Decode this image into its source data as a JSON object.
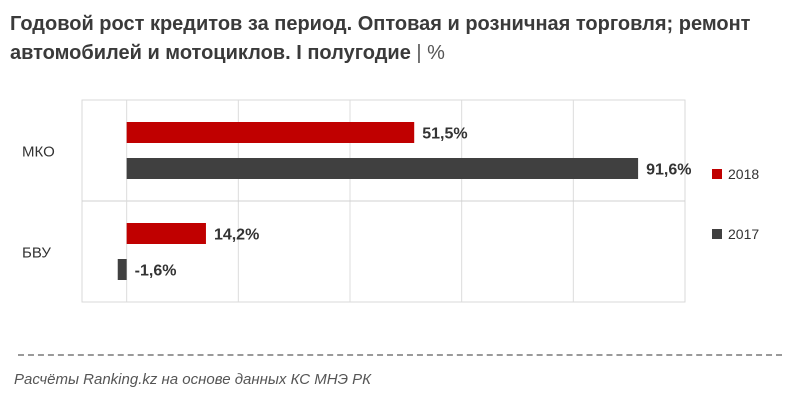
{
  "title": "Годовой рост кредитов за период. Оптовая и розничная торговля; ремонт автомобилей и мотоциклов. I полугодие",
  "title_unit": "| %",
  "source": "Расчёты Ranking.kz на основе данных КС МНЭ РК",
  "chart_data": {
    "type": "bar",
    "orientation": "horizontal",
    "categories": [
      "МКО",
      "БВУ"
    ],
    "series": [
      {
        "name": "2018",
        "values": [
          51.5,
          14.2
        ],
        "labels": [
          "51,5%",
          "14,2%"
        ],
        "color": "#c00000"
      },
      {
        "name": "2017",
        "values": [
          91.6,
          -1.6
        ],
        "labels": [
          "91,6%",
          "-1,6%"
        ],
        "color": "#404040"
      }
    ],
    "xlim": [
      -8,
      100
    ],
    "grid": true,
    "legend": "right"
  }
}
